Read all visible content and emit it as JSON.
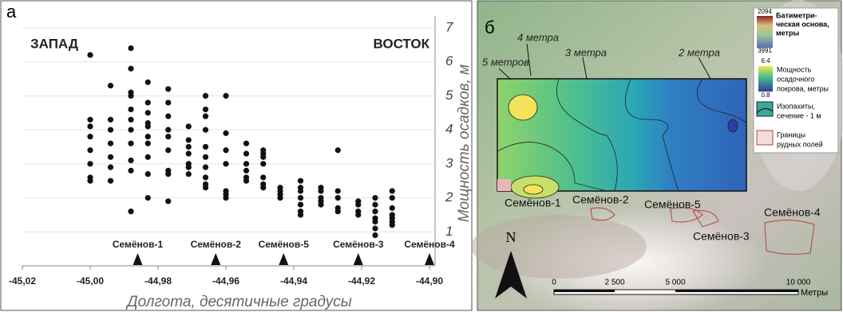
{
  "chart_data": {
    "type": "scatter",
    "panel_label": "а",
    "annotations_top": [
      "ЗАПАД",
      "ВОСТОК"
    ],
    "y_label": "Мощность осадков, м",
    "x_label": "Долгота, десятичные градусы",
    "xlim": [
      -45.02,
      -44.9
    ],
    "xticks": [
      {
        "value": -45.02,
        "label": "-45,02"
      },
      {
        "value": -45.0,
        "label": "-45,00"
      },
      {
        "value": -44.98,
        "label": "-44,98"
      },
      {
        "value": -44.96,
        "label": "-44,96"
      },
      {
        "value": -44.94,
        "label": "-44,94"
      },
      {
        "value": -44.92,
        "label": "-44,92"
      },
      {
        "value": -44.9,
        "label": "-44,90"
      }
    ],
    "ylim": [
      0,
      7.35
    ],
    "yticks": [
      1,
      2,
      3,
      4,
      5,
      6,
      7
    ],
    "grid": true,
    "series": [
      {
        "color": "#111111",
        "x": [
          -45.0,
          -45.0,
          -45.0,
          -45.0,
          -45.0,
          -45.0,
          -45.0,
          -45.0,
          -44.994,
          -44.994,
          -44.994,
          -44.994,
          -44.994,
          -44.994,
          -44.994,
          -44.988,
          -44.988,
          -44.988,
          -44.988,
          -44.988,
          -44.988,
          -44.988,
          -44.988,
          -44.988,
          -44.988,
          -44.988,
          -44.983,
          -44.983,
          -44.983,
          -44.983,
          -44.983,
          -44.983,
          -44.983,
          -44.983,
          -44.983,
          -44.983,
          -44.977,
          -44.977,
          -44.977,
          -44.977,
          -44.977,
          -44.977,
          -44.977,
          -44.977,
          -44.977,
          -44.971,
          -44.971,
          -44.971,
          -44.971,
          -44.971,
          -44.971,
          -44.971,
          -44.966,
          -44.966,
          -44.966,
          -44.966,
          -44.966,
          -44.966,
          -44.966,
          -44.966,
          -44.966,
          -44.966,
          -44.96,
          -44.96,
          -44.96,
          -44.96,
          -44.96,
          -44.96,
          -44.96,
          -44.954,
          -44.954,
          -44.954,
          -44.954,
          -44.954,
          -44.954,
          -44.949,
          -44.949,
          -44.949,
          -44.949,
          -44.949,
          -44.949,
          -44.949,
          -44.944,
          -44.944,
          -44.944,
          -44.944,
          -44.938,
          -44.938,
          -44.938,
          -44.938,
          -44.938,
          -44.938,
          -44.938,
          -44.932,
          -44.932,
          -44.932,
          -44.932,
          -44.932,
          -44.927,
          -44.927,
          -44.927,
          -44.927,
          -44.927,
          -44.921,
          -44.921,
          -44.921,
          -44.921,
          -44.916,
          -44.916,
          -44.916,
          -44.916,
          -44.916,
          -44.916,
          -44.916,
          -44.911,
          -44.911,
          -44.911,
          -44.911,
          -44.911,
          -44.911,
          -44.911
        ],
        "y": [
          6.2,
          4.3,
          4.1,
          3.8,
          3.4,
          3.0,
          2.6,
          2.5,
          5.3,
          4.3,
          4.0,
          3.6,
          3.2,
          2.9,
          2.5,
          6.4,
          5.8,
          5.1,
          5.0,
          4.6,
          4.3,
          4.0,
          3.6,
          3.1,
          2.8,
          1.6,
          5.4,
          4.8,
          4.5,
          4.2,
          4.1,
          3.8,
          3.6,
          3.2,
          2.7,
          2.0,
          5.2,
          4.8,
          4.4,
          4.0,
          3.8,
          3.4,
          2.8,
          2.7,
          1.9,
          4.1,
          3.7,
          3.5,
          3.3,
          3.0,
          2.9,
          2.7,
          5.0,
          4.6,
          4.4,
          4.0,
          3.5,
          3.2,
          2.9,
          2.6,
          2.4,
          2.3,
          5.0,
          3.9,
          3.4,
          3.0,
          2.2,
          2.1,
          2.0,
          3.6,
          3.3,
          3.0,
          2.8,
          2.6,
          2.5,
          3.4,
          3.3,
          3.2,
          3.0,
          2.6,
          2.4,
          2.3,
          2.3,
          2.2,
          2.1,
          2.0,
          2.5,
          2.3,
          2.2,
          2.0,
          1.8,
          1.6,
          1.5,
          2.3,
          2.2,
          2.0,
          1.9,
          1.8,
          3.4,
          2.2,
          2.0,
          1.7,
          1.6,
          1.9,
          1.8,
          1.6,
          1.5,
          2.0,
          1.8,
          1.6,
          1.4,
          1.3,
          1.1,
          0.9,
          2.2,
          2.0,
          1.7,
          1.5,
          1.4,
          1.3,
          1.2
        ]
      }
    ],
    "markers": [
      {
        "text": "Семёнов-1",
        "x": -44.986
      },
      {
        "text": "Семёнов-2",
        "x": -44.963
      },
      {
        "text": "Семёнов-5",
        "x": -44.943
      },
      {
        "text": "Семёнов-3",
        "x": -44.921
      },
      {
        "text": "Семёнов-4",
        "x": -44.9
      }
    ]
  },
  "map": {
    "panel_label": "б",
    "isopachs": [
      "4 метра",
      "3 метра",
      "2 метра",
      "5 метров"
    ],
    "fields": [
      "Семёнов-1",
      "Семёнов-2",
      "Семёнов-5",
      "Семёнов-4",
      "Семёнов-3"
    ],
    "north": "N",
    "legend": {
      "bathymetry": {
        "top": "2094",
        "bottom": "3991",
        "label": [
          "Батиметри-",
          "ческая основа,",
          "метры"
        ]
      },
      "thickness": {
        "top": "6.4",
        "bottom": "0.8",
        "label": [
          "Мощность",
          "осадочного",
          "покрова, метры"
        ]
      },
      "isopach": [
        "Изопахиты,",
        "сечение - 1 м"
      ],
      "boundaries": [
        "Границы",
        "рудных полей"
      ]
    },
    "scale": {
      "ticks": [
        "0",
        "2 500",
        "5 000",
        "10 000"
      ],
      "unit": "Метры"
    }
  }
}
